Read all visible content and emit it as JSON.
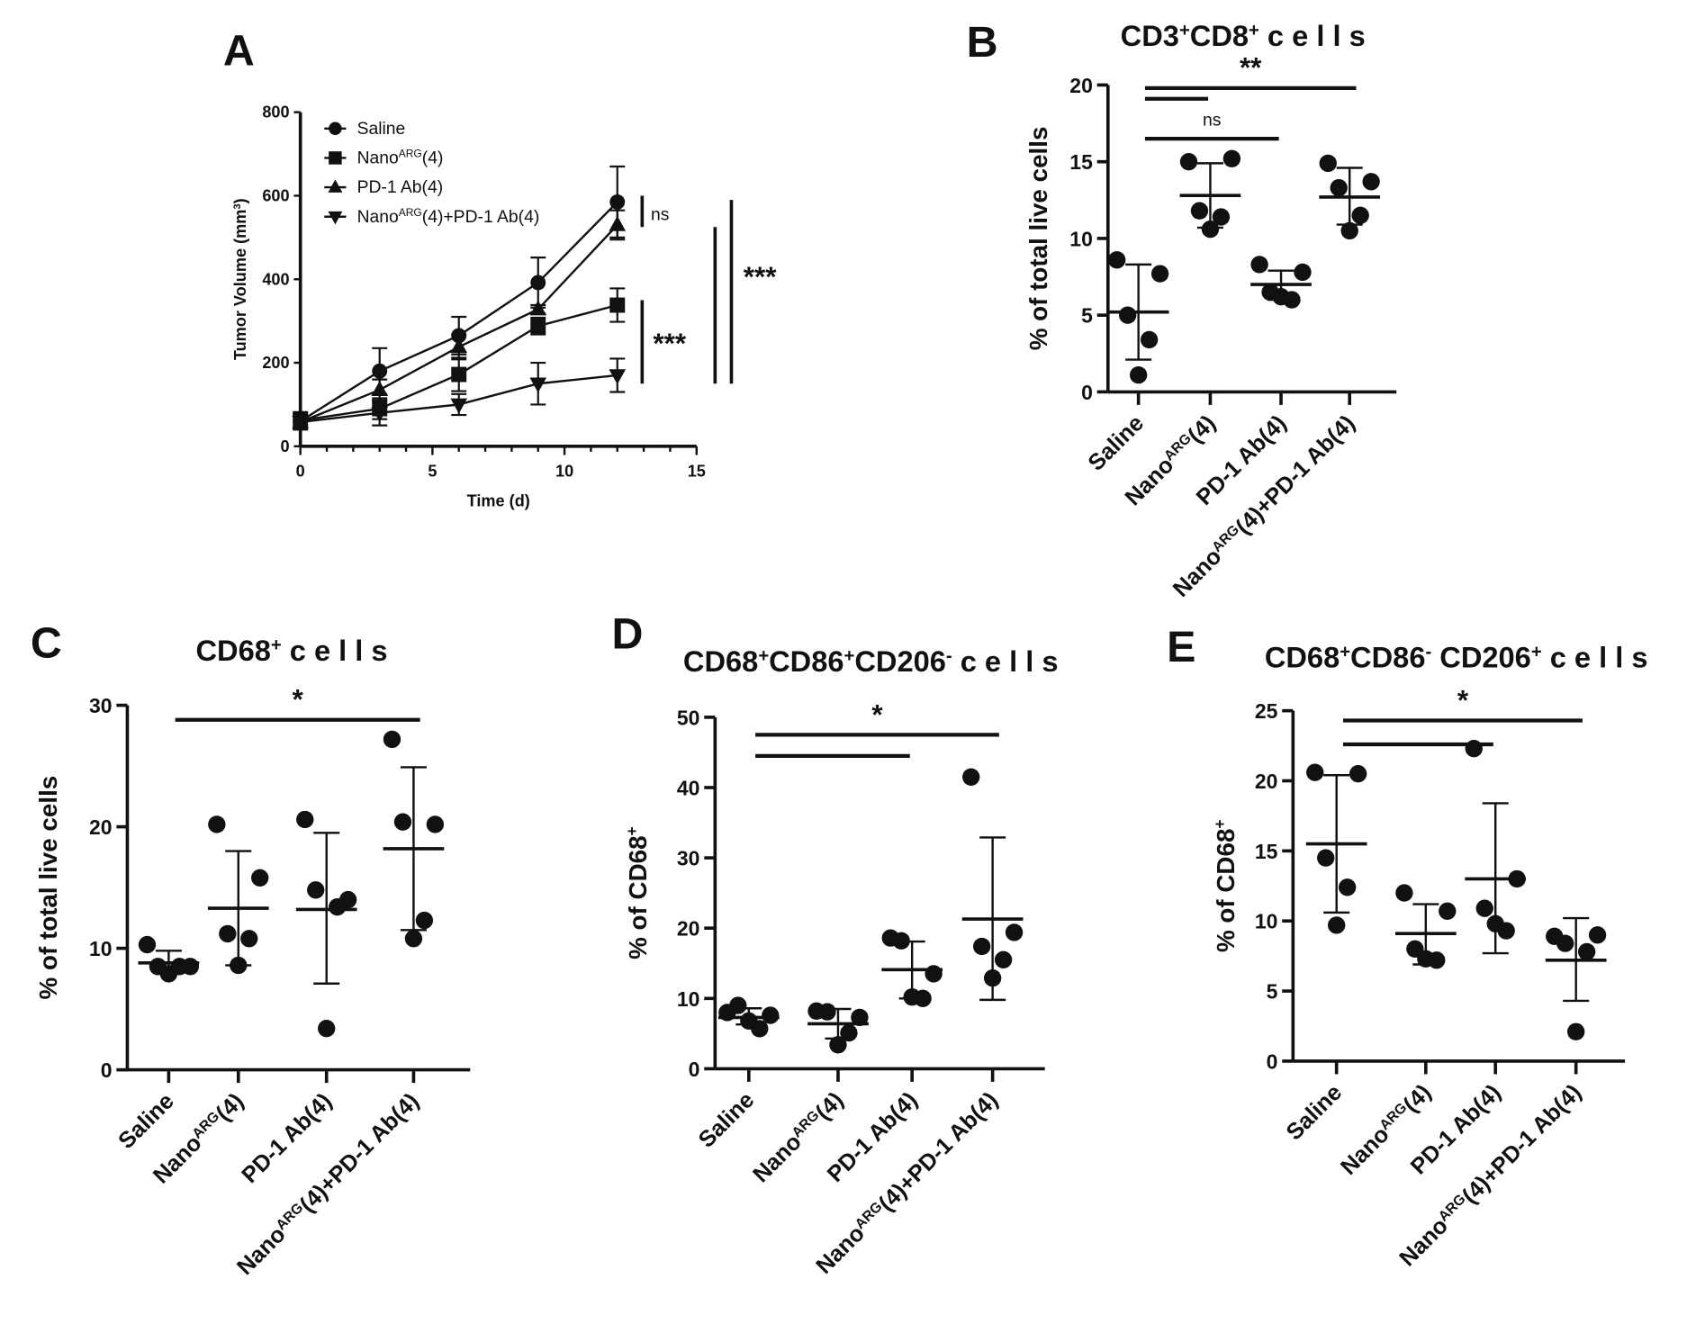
{
  "chart_data": [
    {
      "panel": "A",
      "type": "line",
      "xlabel": "Time (d)",
      "ylabel": [
        {
          "t": "Tumor Volume (mm"
        },
        {
          "t": "3",
          "sup": true
        },
        {
          "t": ")"
        }
      ],
      "xlim": [
        0,
        15
      ],
      "ylim": [
        0,
        800
      ],
      "xticks": [
        0,
        5,
        10,
        15
      ],
      "yticks": [
        0,
        200,
        400,
        600,
        800
      ],
      "legend_position": "top-left",
      "x": [
        0,
        3,
        6,
        9,
        12
      ],
      "series": [
        {
          "name": [
            {
              "t": "Saline"
            }
          ],
          "marker": "circle",
          "values": [
            60,
            180,
            265,
            392,
            585
          ],
          "error": [
            20,
            55,
            45,
            60,
            85
          ]
        },
        {
          "name": [
            {
              "t": "Nano"
            },
            {
              "t": "ARG",
              "sup": true
            },
            {
              "t": "(4)"
            }
          ],
          "marker": "square",
          "values": [
            62,
            90,
            172,
            288,
            338
          ],
          "error": [
            20,
            25,
            40,
            20,
            40
          ]
        },
        {
          "name": [
            {
              "t": "PD-1 Ab(4)"
            }
          ],
          "marker": "triangle-up",
          "values": [
            58,
            135,
            238,
            328,
            530
          ],
          "error": [
            15,
            25,
            30,
            10,
            35
          ]
        },
        {
          "name": [
            {
              "t": "Nano"
            },
            {
              "t": "ARG",
              "sup": true
            },
            {
              "t": "(4)+PD-1 Ab(4)"
            }
          ],
          "marker": "triangle-down",
          "values": [
            58,
            80,
            100,
            150,
            170
          ],
          "error": [
            15,
            30,
            25,
            50,
            40
          ]
        }
      ],
      "significance": [
        {
          "label": "ns",
          "from": 600,
          "to": 525
        },
        {
          "label": "***",
          "from": 350,
          "to": 150
        },
        {
          "label": "",
          "from": 525,
          "to": 150
        },
        {
          "label": "***",
          "from": 590,
          "to": 150
        }
      ]
    },
    {
      "panel": "B",
      "type": "scatter",
      "title": [
        {
          "t": "CD3"
        },
        {
          "t": "+",
          "sup": true
        },
        {
          "t": "CD8"
        },
        {
          "t": "+",
          "sup": true
        },
        {
          "t": " c e l l s"
        }
      ],
      "ylabel": [
        {
          "t": "% of total live cells"
        }
      ],
      "ylim": [
        0,
        20
      ],
      "yticks": [
        0,
        5,
        10,
        15,
        20
      ],
      "categories": [
        [
          {
            "t": "Saline"
          }
        ],
        [
          {
            "t": "Nano"
          },
          {
            "t": "ARG",
            "sup": true
          },
          {
            "t": "(4)"
          }
        ],
        [
          {
            "t": "PD-1 Ab(4)"
          }
        ],
        [
          {
            "t": "Nano"
          },
          {
            "t": "ARG",
            "sup": true
          },
          {
            "t": "(4)+PD-1 Ab(4)"
          }
        ]
      ],
      "groups": [
        {
          "points": [
            8.6,
            7.7,
            5.0,
            3.4,
            1.1
          ],
          "mean": 5.2,
          "sd_upper": 8.3,
          "sd_lower": 2.1
        },
        {
          "points": [
            15.0,
            15.2,
            11.8,
            11.4,
            10.6
          ],
          "mean": 12.8,
          "sd_upper": 14.9,
          "sd_lower": 10.7
        },
        {
          "points": [
            8.3,
            7.8,
            6.5,
            6.0,
            6.2
          ],
          "mean": 7.0,
          "sd_upper": 7.9,
          "sd_lower": 6.0
        },
        {
          "points": [
            14.9,
            13.7,
            13.3,
            11.5,
            10.5
          ],
          "mean": 12.7,
          "sd_upper": 14.6,
          "sd_lower": 10.9
        }
      ],
      "significance": [
        {
          "label": "**",
          "from": 0,
          "to": 3,
          "y": 19.8
        },
        {
          "label": "",
          "from": 0,
          "to": 1,
          "y": 19.1
        },
        {
          "label": "ns",
          "from": 0,
          "to": 2,
          "y": 16.5
        }
      ]
    },
    {
      "panel": "C",
      "type": "scatter",
      "title": [
        {
          "t": "CD68"
        },
        {
          "t": "+",
          "sup": true
        },
        {
          "t": " c e l l s"
        }
      ],
      "ylabel": [
        {
          "t": "% of total live cells"
        }
      ],
      "ylim": [
        0,
        30
      ],
      "yticks": [
        0,
        10,
        20,
        30
      ],
      "categories": [
        [
          {
            "t": "Saline"
          }
        ],
        [
          {
            "t": "Nano"
          },
          {
            "t": "ARG",
            "sup": true
          },
          {
            "t": "(4)"
          }
        ],
        [
          {
            "t": "PD-1 Ab(4)"
          }
        ],
        [
          {
            "t": "Nano"
          },
          {
            "t": "ARG",
            "sup": true
          },
          {
            "t": "(4)+PD-1 Ab(4)"
          }
        ]
      ],
      "groups": [
        {
          "points": [
            10.3,
            8.5,
            8.5,
            8.5,
            7.9
          ],
          "mean": 8.8,
          "sd_upper": 9.8,
          "sd_lower": 7.9
        },
        {
          "points": [
            20.2,
            15.8,
            11.2,
            10.8,
            8.6
          ],
          "mean": 13.3,
          "sd_upper": 18.0,
          "sd_lower": 8.6
        },
        {
          "points": [
            20.6,
            14.0,
            14.8,
            13.4,
            3.4
          ],
          "mean": 13.2,
          "sd_upper": 19.5,
          "sd_lower": 7.1
        },
        {
          "points": [
            27.2,
            20.2,
            20.4,
            12.3,
            10.8
          ],
          "mean": 18.2,
          "sd_upper": 24.9,
          "sd_lower": 11.5
        }
      ],
      "significance": [
        {
          "label": "*",
          "from": 0,
          "to": 3,
          "y": 28.8
        }
      ]
    },
    {
      "panel": "D",
      "type": "scatter",
      "title": [
        {
          "t": "CD68"
        },
        {
          "t": "+",
          "sup": true
        },
        {
          "t": "CD86"
        },
        {
          "t": "+",
          "sup": true
        },
        {
          "t": "CD206"
        },
        {
          "t": "-",
          "sup": true
        },
        {
          "t": "  c e l l s"
        }
      ],
      "ylabel": [
        {
          "t": "% of CD68"
        },
        {
          "t": "+",
          "sup": true
        }
      ],
      "ylim": [
        0,
        50
      ],
      "yticks": [
        0,
        10,
        20,
        30,
        40,
        50
      ],
      "categories": [
        [
          {
            "t": "Saline"
          }
        ],
        [
          {
            "t": "Nano"
          },
          {
            "t": "ARG",
            "sup": true
          },
          {
            "t": "(4)"
          }
        ],
        [
          {
            "t": "PD-1 Ab(4)"
          }
        ],
        [
          {
            "t": "Nano"
          },
          {
            "t": "ARG",
            "sup": true
          },
          {
            "t": "(4)+PD-1 Ab(4)"
          }
        ]
      ],
      "groups": [
        {
          "points": [
            8.0,
            7.6,
            9.0,
            5.7,
            6.8
          ],
          "mean": 7.3,
          "sd_upper": 8.6,
          "sd_lower": 6.3
        },
        {
          "points": [
            8.2,
            7.3,
            8.1,
            5.1,
            3.4
          ],
          "mean": 6.4,
          "sd_upper": 8.5,
          "sd_lower": 4.3
        },
        {
          "points": [
            18.6,
            13.5,
            18.2,
            10.0,
            10.2
          ],
          "mean": 14.1,
          "sd_upper": 18.1,
          "sd_lower": 10.0
        },
        {
          "points": [
            41.5,
            19.4,
            17.4,
            15.5,
            12.9
          ],
          "mean": 21.3,
          "sd_upper": 32.9,
          "sd_lower": 9.8
        }
      ],
      "significance": [
        {
          "label": "*",
          "from": 0,
          "to": 3,
          "y": 47.5
        },
        {
          "label": "",
          "from": 0,
          "to": 2,
          "y": 44.5
        }
      ]
    },
    {
      "panel": "E",
      "type": "scatter",
      "title": [
        {
          "t": "CD68"
        },
        {
          "t": "+",
          "sup": true
        },
        {
          "t": "CD86"
        },
        {
          "t": "-",
          "sup": true
        },
        {
          "t": " CD206"
        },
        {
          "t": "+",
          "sup": true
        },
        {
          "t": " c e l l s"
        }
      ],
      "ylabel": [
        {
          "t": "% of CD68"
        },
        {
          "t": "+",
          "sup": true
        }
      ],
      "ylim": [
        0,
        25
      ],
      "yticks": [
        0,
        5,
        10,
        15,
        20,
        25
      ],
      "categories": [
        [
          {
            "t": "Saline"
          }
        ],
        [
          {
            "t": "Nano"
          },
          {
            "t": "ARG",
            "sup": true
          },
          {
            "t": "(4)"
          }
        ],
        [
          {
            "t": "PD-1 Ab(4)"
          }
        ],
        [
          {
            "t": "Nano"
          },
          {
            "t": "ARG",
            "sup": true
          },
          {
            "t": "(4)+PD-1 Ab(4)"
          }
        ]
      ],
      "groups": [
        {
          "points": [
            20.6,
            20.5,
            14.5,
            12.4,
            9.7
          ],
          "mean": 15.5,
          "sd_upper": 20.4,
          "sd_lower": 10.6
        },
        {
          "points": [
            12.0,
            10.7,
            8.0,
            7.2,
            7.3
          ],
          "mean": 9.1,
          "sd_upper": 11.2,
          "sd_lower": 6.9
        },
        {
          "points": [
            22.3,
            13.0,
            10.9,
            9.3,
            9.8
          ],
          "mean": 13.0,
          "sd_upper": 18.4,
          "sd_lower": 7.7
        },
        {
          "points": [
            8.9,
            9.0,
            8.4,
            7.8,
            2.1
          ],
          "mean": 7.2,
          "sd_upper": 10.2,
          "sd_lower": 4.3
        }
      ],
      "significance": [
        {
          "label": "*",
          "from": 0,
          "to": 3,
          "y": 24.3
        },
        {
          "label": "",
          "from": 0,
          "to": 2,
          "y": 22.6
        }
      ]
    }
  ]
}
